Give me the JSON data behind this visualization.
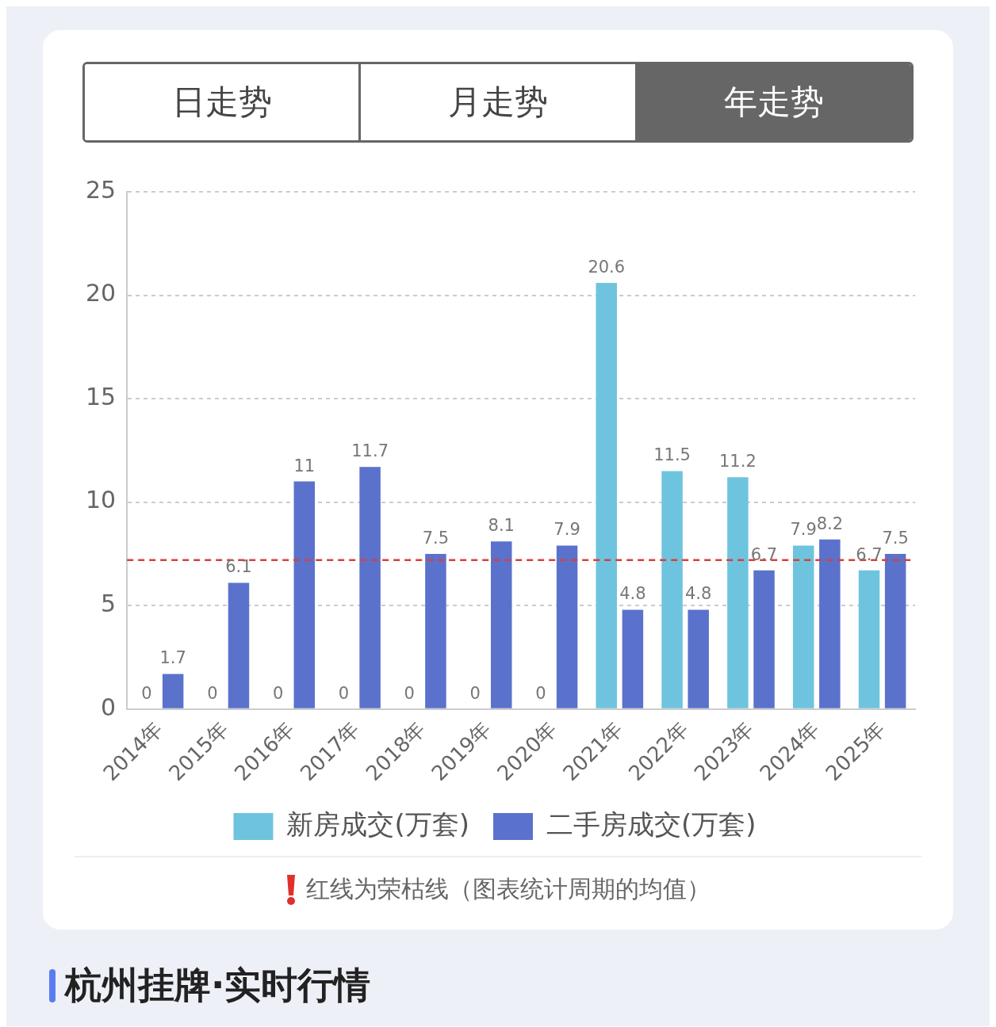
{
  "chart_data": {
    "type": "bar",
    "categories": [
      "2014年",
      "2015年",
      "2016年",
      "2017年",
      "2018年",
      "2019年",
      "2020年",
      "2021年",
      "2022年",
      "2023年",
      "2024年",
      "2025年"
    ],
    "series": [
      {
        "name": "新房成交(万套)",
        "color": "#6ec4de",
        "values": [
          0,
          0,
          0,
          0,
          0,
          0,
          0,
          20.6,
          11.5,
          11.2,
          7.9,
          6.7
        ]
      },
      {
        "name": "二手房成交(万套)",
        "color": "#5b72cc",
        "values": [
          1.7,
          6.1,
          11,
          11.7,
          7.5,
          8.1,
          7.9,
          4.8,
          4.8,
          6.7,
          8.2,
          7.5
        ]
      }
    ],
    "ylim": [
      0,
      25
    ],
    "yticks": [
      0,
      5,
      10,
      15,
      20,
      25
    ],
    "grid": "y",
    "legend": "bottom",
    "data_labels": true,
    "ref_lines": [
      {
        "axis": "y",
        "value": 7.2,
        "color": "#d9403a",
        "line_style": "dashed"
      }
    ],
    "annotations": [
      "日走势",
      "月走势",
      "年走势",
      "红线为荣枯线（图表统计周期的均值）",
      "杭州挂牌·实时行情"
    ]
  }
}
